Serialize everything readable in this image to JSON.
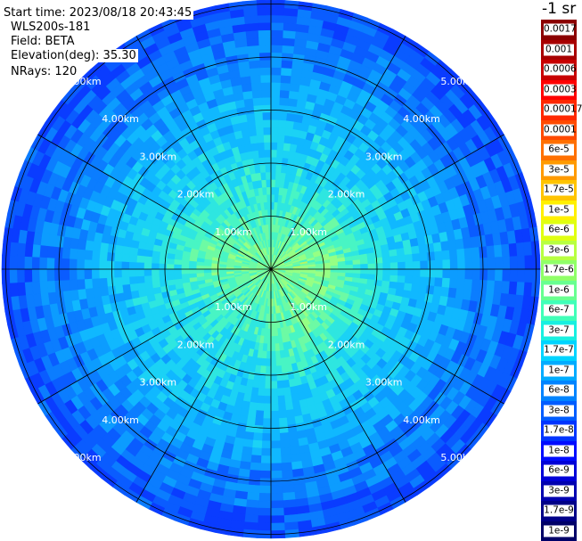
{
  "header": {
    "start_time": "Start time: 2023/08/18 20:43:45",
    "instrument": "WLS200s-181",
    "field": "Field: BETA",
    "elevation": "Elevation(deg): 35.30",
    "nrays": "NRays: 120"
  },
  "ring_labels": [
    "1.00km",
    "2.00km",
    "3.00km",
    "4.00km",
    "5.00km"
  ],
  "colorbar": {
    "unit_label": "-1 sr",
    "ticks": [
      {
        "label": "0.0017",
        "color": "#8b0000"
      },
      {
        "label": "0.001",
        "color": "#a80000"
      },
      {
        "label": "0.0006",
        "color": "#c80000"
      },
      {
        "label": "0.0003",
        "color": "#ff0000"
      },
      {
        "label": "0.00017",
        "color": "#ff2800"
      },
      {
        "label": "0.0001",
        "color": "#ff4a00"
      },
      {
        "label": "6e-5",
        "color": "#ff7000"
      },
      {
        "label": "3e-5",
        "color": "#ff9a00"
      },
      {
        "label": "1.7e-5",
        "color": "#ffc400"
      },
      {
        "label": "1e-5",
        "color": "#fff000"
      },
      {
        "label": "6e-6",
        "color": "#e0ff10"
      },
      {
        "label": "3e-6",
        "color": "#b8ff40"
      },
      {
        "label": "1.7e-6",
        "color": "#90ff68"
      },
      {
        "label": "1e-6",
        "color": "#68ff90"
      },
      {
        "label": "6e-7",
        "color": "#40ffb8"
      },
      {
        "label": "3e-7",
        "color": "#18f0e0"
      },
      {
        "label": "1.7e-7",
        "color": "#00d4ff"
      },
      {
        "label": "1e-7",
        "color": "#00acff"
      },
      {
        "label": "6e-8",
        "color": "#0084ff"
      },
      {
        "label": "3e-8",
        "color": "#005cff"
      },
      {
        "label": "1.7e-8",
        "color": "#0034ff"
      },
      {
        "label": "1e-8",
        "color": "#000cff"
      },
      {
        "label": "6e-9",
        "color": "#0000d8"
      },
      {
        "label": "3e-9",
        "color": "#0000b0"
      },
      {
        "label": "1.7e-9",
        "color": "#000088"
      },
      {
        "label": "1e-9",
        "color": "#000068"
      }
    ]
  }
}
